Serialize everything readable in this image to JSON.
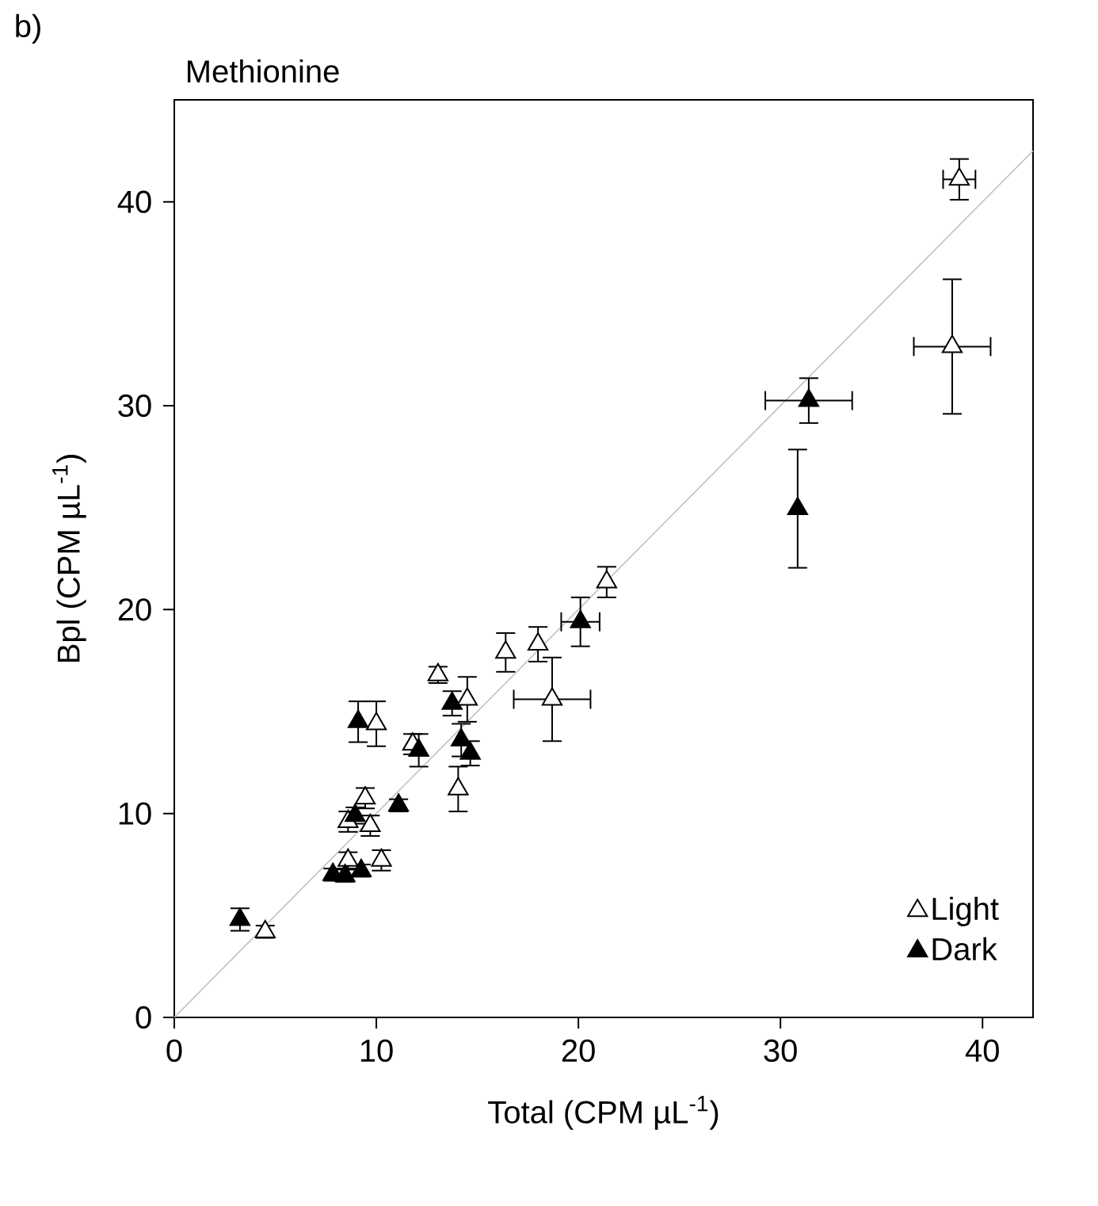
{
  "chart_data": {
    "type": "scatter",
    "title": "Methionine",
    "xlabel": "Total (CPM µL$^{-1}$)",
    "ylabel": "Bpl (CPM µL$^{-1}$)",
    "annotations": [
      "b)"
    ],
    "xlim": [
      0,
      42.5
    ],
    "ylim": [
      0,
      45
    ],
    "xticks": [
      0,
      10,
      20,
      30,
      40
    ],
    "yticks": [
      0,
      10,
      20,
      30,
      40
    ],
    "legend": "bottom right",
    "marker": "triangle",
    "grid": false,
    "series": [
      {
        "type": "line",
        "marker": "none",
        "color": "#c0c0c0",
        "x": [
          0,
          42.5
        ],
        "values": [
          0,
          42.5
        ]
      },
      {
        "name": "Light",
        "color": "#ffffff",
        "x": [
          38.85,
          38.5,
          21.4,
          18.0,
          16.4,
          18.7,
          13.05,
          14.5,
          10.0,
          11.8,
          14.05,
          9.45,
          9.7,
          8.6,
          10.25,
          8.6,
          4.5
        ],
        "values": [
          41.1,
          32.9,
          21.35,
          18.3,
          17.9,
          15.6,
          16.8,
          15.6,
          14.4,
          13.4,
          11.2,
          10.75,
          9.4,
          9.6,
          7.7,
          7.7,
          4.2
        ],
        "errors": [
          1.0,
          3.3,
          0.75,
          0.85,
          0.95,
          2.05,
          0.4,
          1.1,
          1.1,
          0.5,
          1.1,
          0.5,
          0.5,
          0.5,
          0.5,
          0.4,
          0.3
        ],
        "xerrors": [
          0.8,
          1.9,
          null,
          null,
          null,
          1.9,
          null,
          null,
          null,
          null,
          null,
          null,
          null,
          null,
          null,
          null,
          null
        ]
      },
      {
        "name": "Dark",
        "color": "#000000",
        "x": [
          31.4,
          30.85,
          20.1,
          13.75,
          9.1,
          12.1,
          14.2,
          14.65,
          11.1,
          8.95,
          7.85,
          8.45,
          9.25,
          3.25
        ],
        "values": [
          30.25,
          24.95,
          19.4,
          15.4,
          14.5,
          13.1,
          13.6,
          12.95,
          10.4,
          9.9,
          7.0,
          6.95,
          7.2,
          4.8
        ],
        "errors": [
          1.1,
          2.9,
          1.2,
          0.6,
          1.0,
          0.8,
          0.8,
          0.6,
          0.3,
          0.4,
          0.3,
          0.3,
          0.3,
          0.55
        ],
        "xerrors": [
          2.15,
          null,
          0.95,
          null,
          null,
          null,
          null,
          null,
          null,
          null,
          null,
          null,
          null,
          null
        ]
      }
    ]
  }
}
